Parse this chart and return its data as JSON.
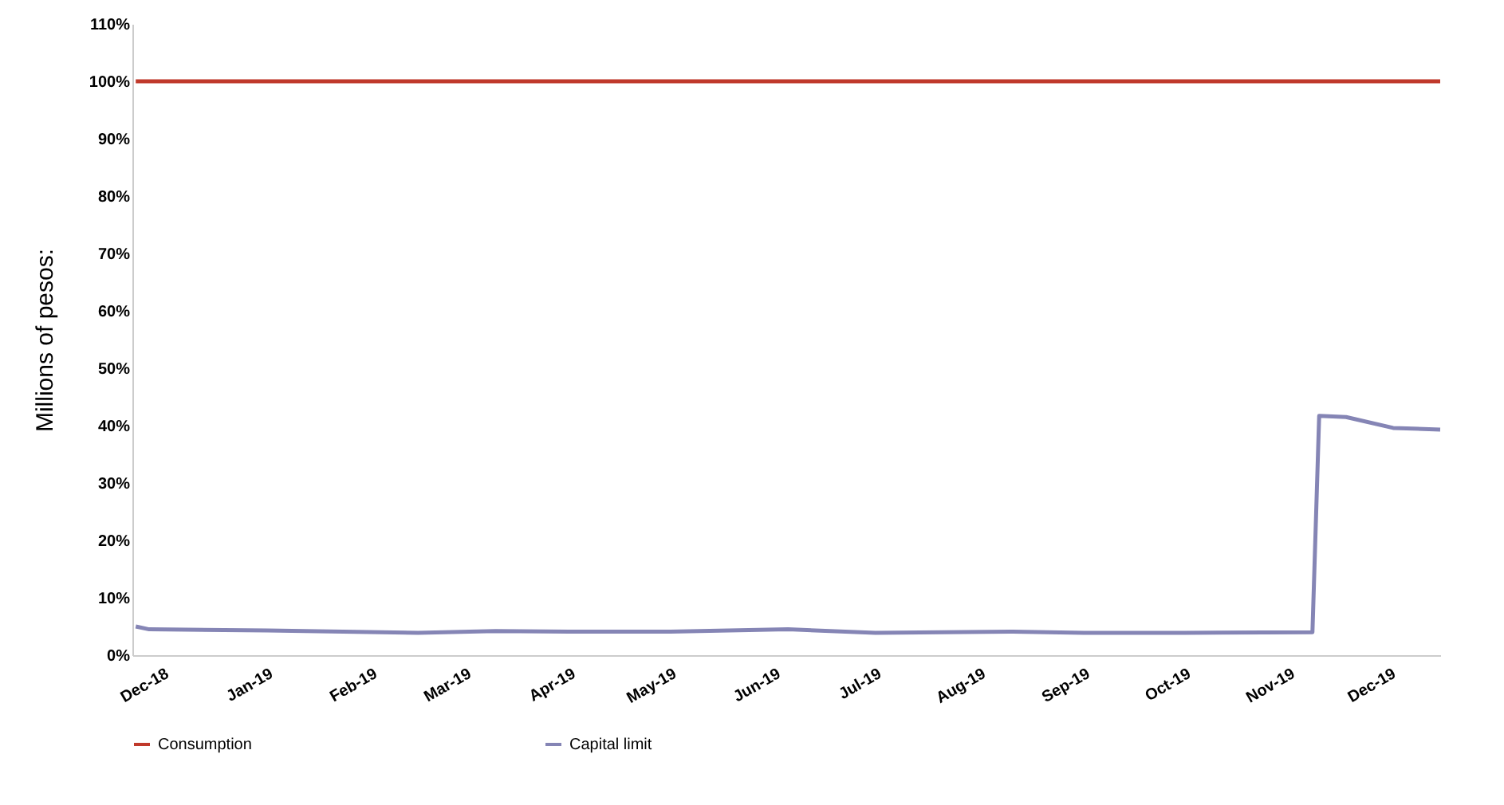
{
  "chart_data": {
    "type": "line",
    "ylabel": "Millions of pesos:",
    "xlim": [
      "2018-11-22",
      "2019-12-16"
    ],
    "xticks": [
      {
        "value": "2018-12-01",
        "label": "Dec-18"
      },
      {
        "value": "2019-01-01",
        "label": "Jan-19"
      },
      {
        "value": "2019-02-01",
        "label": "Feb-19"
      },
      {
        "value": "2019-03-01",
        "label": "Mar-19"
      },
      {
        "value": "2019-04-01",
        "label": "Apr-19"
      },
      {
        "value": "2019-05-01",
        "label": "May-19"
      },
      {
        "value": "2019-06-01",
        "label": "Jun-19"
      },
      {
        "value": "2019-07-01",
        "label": "Jul-19"
      },
      {
        "value": "2019-08-01",
        "label": "Aug-19"
      },
      {
        "value": "2019-09-01",
        "label": "Sep-19"
      },
      {
        "value": "2019-10-01",
        "label": "Oct-19"
      },
      {
        "value": "2019-11-01",
        "label": "Nov-19"
      },
      {
        "value": "2019-12-01",
        "label": "Dec-19"
      }
    ],
    "ylim": [
      0,
      110
    ],
    "yticks": [
      {
        "value": 0,
        "label": "0%"
      },
      {
        "value": 10,
        "label": "10%"
      },
      {
        "value": 20,
        "label": "20%"
      },
      {
        "value": 30,
        "label": "30%"
      },
      {
        "value": 40,
        "label": "40%"
      },
      {
        "value": 50,
        "label": "50%"
      },
      {
        "value": 60,
        "label": "60%"
      },
      {
        "value": 70,
        "label": "70%"
      },
      {
        "value": 80,
        "label": "80%"
      },
      {
        "value": 90,
        "label": "90%"
      },
      {
        "value": 100,
        "label": "100%"
      },
      {
        "value": 110,
        "label": "110%"
      }
    ],
    "series": [
      {
        "name": "Consumption",
        "color": "#c0392b",
        "x": [
          "2018-11-23",
          "2019-12-16"
        ],
        "values": [
          100,
          100
        ]
      },
      {
        "name": "Capital limit",
        "color": "#8585b5",
        "x": [
          "2018-11-23",
          "2018-11-27",
          "2019-01-01",
          "2019-02-15",
          "2019-03-10",
          "2019-04-01",
          "2019-05-01",
          "2019-06-05",
          "2019-07-01",
          "2019-08-10",
          "2019-09-01",
          "2019-10-01",
          "2019-11-08",
          "2019-11-10",
          "2019-11-18",
          "2019-12-02",
          "2019-12-16"
        ],
        "values": [
          5,
          4.5,
          4.3,
          3.9,
          4.2,
          4.1,
          4.1,
          4.5,
          3.9,
          4.1,
          3.9,
          3.9,
          4,
          41.7,
          41.5,
          39.6,
          39.3
        ]
      }
    ],
    "grid": false,
    "legend": "bottom"
  }
}
